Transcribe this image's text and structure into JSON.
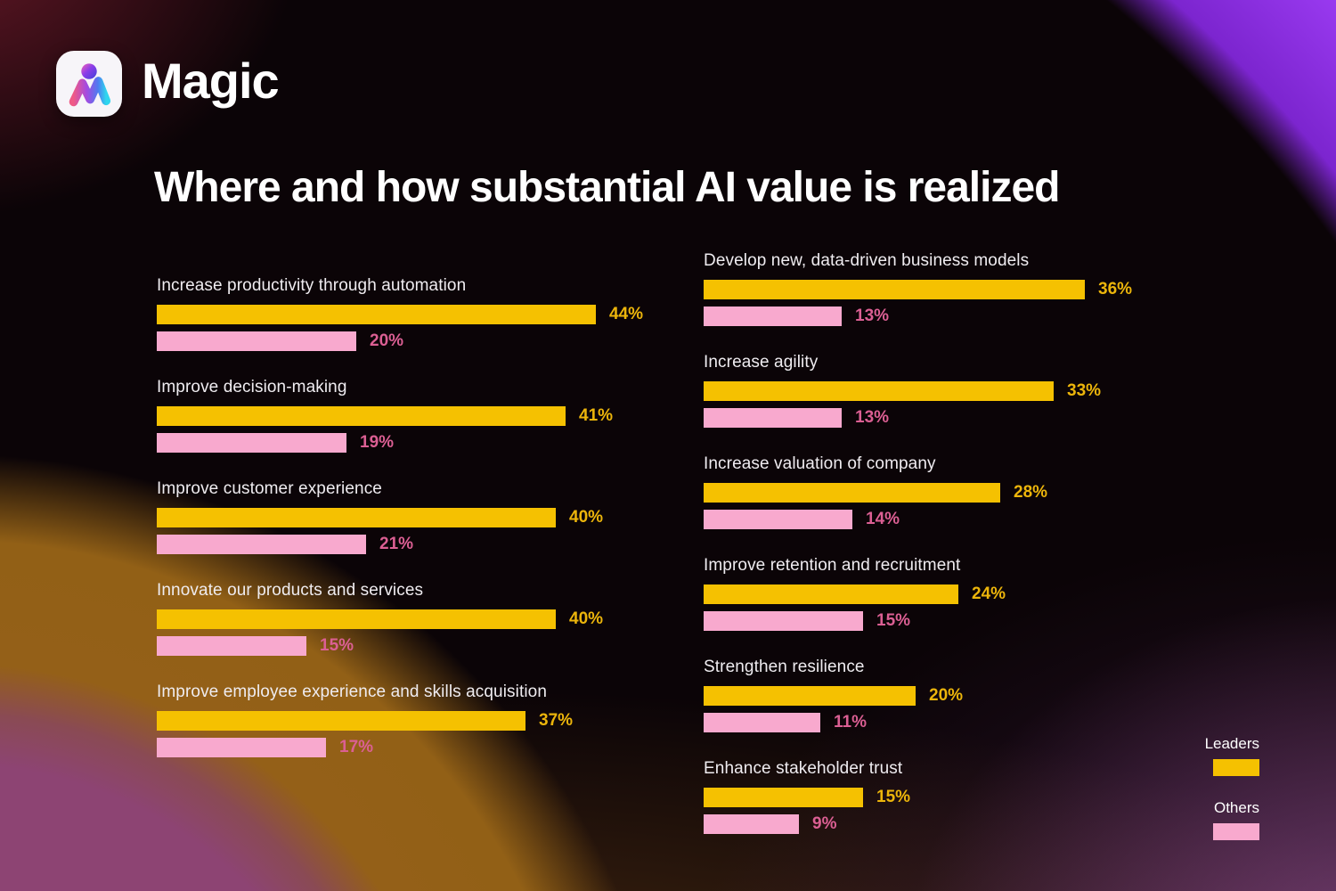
{
  "brand": {
    "name": "Magic",
    "logo_icon": "magic-m-logo-icon"
  },
  "title": "Where and how substantial AI value is realized",
  "legend": {
    "leaders_label": "Leaders",
    "others_label": "Others"
  },
  "colors": {
    "leaders_bar": "#F5C101",
    "others_bar": "#F8A9CE",
    "leaders_text": "#ECB50B",
    "others_text": "#DB5F93",
    "label_text": "#EFECF0",
    "title_text": "#FFFFFF",
    "corner_purple": "#9B3BF2",
    "corner_amber": "#946018",
    "corner_plum": "#8D4473"
  },
  "chart_data": {
    "type": "bar",
    "orientation": "horizontal",
    "unit": "%",
    "title": "Where and how substantial AI value is realized",
    "series": [
      "Leaders",
      "Others"
    ],
    "value_labels": true,
    "legend_position": "right",
    "xlim": [
      0,
      50
    ],
    "columns": [
      {
        "groups": [
          {
            "label": "Increase productivity through automation",
            "values": {
              "Leaders": 44,
              "Others": 20
            }
          },
          {
            "label": "Improve decision-making",
            "values": {
              "Leaders": 41,
              "Others": 19
            }
          },
          {
            "label": "Improve customer experience",
            "values": {
              "Leaders": 40,
              "Others": 21
            }
          },
          {
            "label": "Innovate our products and services",
            "values": {
              "Leaders": 40,
              "Others": 15
            }
          },
          {
            "label": "Improve employee experience and skills acquisition",
            "values": {
              "Leaders": 37,
              "Others": 17
            }
          }
        ]
      },
      {
        "groups": [
          {
            "label": "Develop new, data-driven business models",
            "values": {
              "Leaders": 36,
              "Others": 13
            }
          },
          {
            "label": "Increase agility",
            "values": {
              "Leaders": 33,
              "Others": 13
            }
          },
          {
            "label": "Increase valuation of company",
            "values": {
              "Leaders": 28,
              "Others": 14
            }
          },
          {
            "label": "Improve retention and recruitment",
            "values": {
              "Leaders": 24,
              "Others": 15
            }
          },
          {
            "label": "Strengthen resilience",
            "values": {
              "Leaders": 20,
              "Others": 11
            }
          },
          {
            "label": "Enhance stakeholder trust",
            "values": {
              "Leaders": 15,
              "Others": 9
            }
          }
        ]
      }
    ]
  }
}
